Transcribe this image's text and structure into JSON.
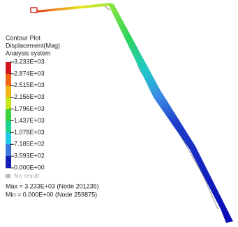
{
  "legend": {
    "title": [
      "Contour Plot",
      "Displacement(Mag)",
      "Analysis system"
    ],
    "labels": [
      "3.233E+03",
      "2.874E+03",
      "2.515E+03",
      "2.156E+03",
      "1.796E+03",
      "1.437E+03",
      "1.078E+03",
      "7.185E+02",
      "3.593E+02",
      "0.000E+00"
    ],
    "no_result": "No result"
  },
  "summary": {
    "max": "Max = 3.233E+03 (Node 201235)",
    "min": "Min = 0.000E+00 (Node 259875)"
  }
}
